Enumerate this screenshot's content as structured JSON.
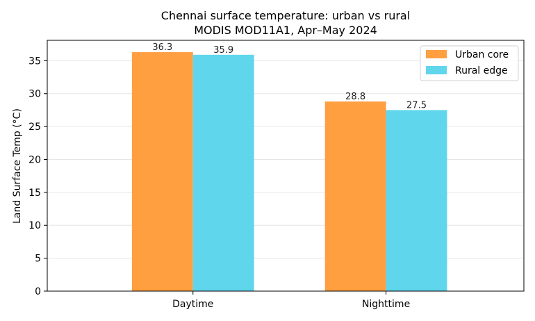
{
  "chart_data": {
    "type": "bar",
    "title": "Chennai surface temperature: urban vs rural",
    "subtitle": "MODIS MOD11A1, Apr–May 2024",
    "xlabel": "",
    "ylabel": "Land Surface Temp (°C)",
    "categories": [
      "Daytime",
      "Nighttime"
    ],
    "series": [
      {
        "name": "Urban core",
        "values": [
          36.3,
          28.8
        ],
        "color": "#ff9f40"
      },
      {
        "name": "Rural edge",
        "values": [
          35.9,
          27.5
        ],
        "color": "#60d6ec"
      }
    ],
    "value_labels": [
      [
        "36.3",
        "28.8"
      ],
      [
        "35.9",
        "27.5"
      ]
    ],
    "ylim": [
      0,
      38.1
    ],
    "yticks": [
      0,
      5,
      10,
      15,
      20,
      25,
      30,
      35
    ],
    "grid": "horizontal",
    "legend_position": "top-right"
  }
}
